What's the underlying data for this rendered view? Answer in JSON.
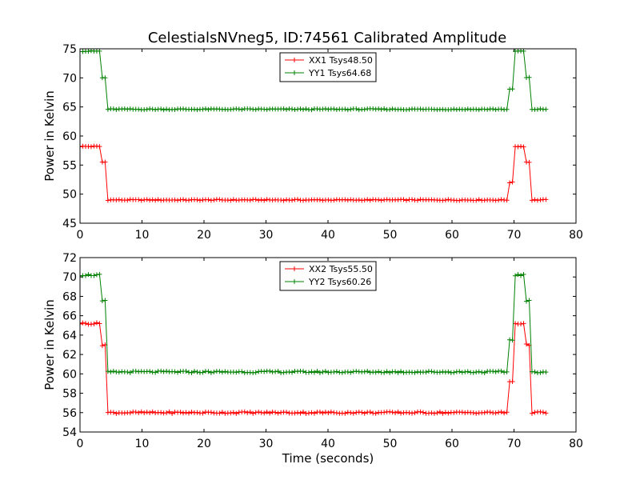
{
  "figure_title": "CelestialsNVneg5, ID:74561 Calibrated Amplitude",
  "chart_data": [
    {
      "type": "line",
      "title": "CelestialsNVneg5, ID:74561 Calibrated Amplitude",
      "xlabel": "",
      "ylabel": "Power in Kelvin",
      "xlim": [
        0,
        80
      ],
      "ylim": [
        45,
        75
      ],
      "xticks": [
        0,
        10,
        20,
        30,
        40,
        50,
        60,
        70,
        80
      ],
      "yticks": [
        45,
        50,
        55,
        60,
        65,
        70,
        75
      ],
      "legend_position": "top-center",
      "series": [
        {
          "name": "XX1 Tsys48.50",
          "color": "#ff0000",
          "low": 49.0,
          "high": 58.2,
          "mid_values": [
            52.0,
            55.5
          ]
        },
        {
          "name": "YY1 Tsys64.68",
          "color": "#008000",
          "low": 64.6,
          "high": 74.6,
          "mid_values": [
            68.0,
            70.0
          ]
        }
      ],
      "time_profile": {
        "t_start": 0,
        "t_end": 75.5,
        "high_until": 3.5,
        "transition_to": 4.4,
        "low_until": 69.3,
        "rise_end": 70.2,
        "high2_until": 72.0,
        "fall_end": 72.9
      }
    },
    {
      "type": "line",
      "title": "",
      "xlabel": "Time (seconds)",
      "ylabel": "Power in Kelvin",
      "xlim": [
        0,
        80
      ],
      "ylim": [
        54,
        72
      ],
      "xticks": [
        0,
        10,
        20,
        30,
        40,
        50,
        60,
        70,
        80
      ],
      "yticks": [
        54,
        56,
        58,
        60,
        62,
        64,
        66,
        68,
        70,
        72
      ],
      "legend_position": "top-center",
      "series": [
        {
          "name": "XX2 Tsys55.50",
          "color": "#ff0000",
          "low": 56.0,
          "high": 65.2,
          "mid_values": [
            59.2,
            63.0
          ]
        },
        {
          "name": "YY2 Tsys60.26",
          "color": "#008000",
          "low": 60.2,
          "high": 70.2,
          "mid_values": [
            63.5,
            67.5
          ]
        }
      ],
      "time_profile": {
        "t_start": 0,
        "t_end": 75.5,
        "high_until": 3.5,
        "transition_to": 4.4,
        "low_until": 69.3,
        "rise_end": 70.2,
        "high2_until": 72.0,
        "fall_end": 72.9
      }
    }
  ]
}
